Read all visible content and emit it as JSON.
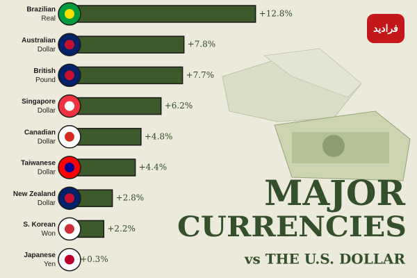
{
  "chart_data": {
    "type": "bar",
    "orientation": "horizontal",
    "title": "MAJOR",
    "title_line2": "CURRENCIES",
    "subtitle": "vs THE U.S. DOLLAR",
    "logo": "فرادید",
    "categories": [
      [
        "Brazilian",
        "Real"
      ],
      [
        "Australian",
        "Dollar"
      ],
      [
        "British",
        "Pound"
      ],
      [
        "Singapore",
        "Dollar"
      ],
      [
        "Canadian",
        "Dollar"
      ],
      [
        "Taiwanese",
        "Dollar"
      ],
      [
        "New Zealand",
        "Dollar"
      ],
      [
        "S. Korean",
        "Won"
      ],
      [
        "Japanese",
        "Yen"
      ]
    ],
    "values": [
      12.8,
      7.8,
      7.7,
      6.2,
      4.8,
      4.4,
      2.8,
      2.2,
      0.3
    ],
    "value_labels": [
      "+12.8%",
      "+7.8%",
      "+7.7%",
      "+6.2%",
      "+4.8%",
      "+4.4%",
      "+2.8%",
      "+2.2%",
      "+0.3%"
    ],
    "color": "#3d5a2a"
  }
}
